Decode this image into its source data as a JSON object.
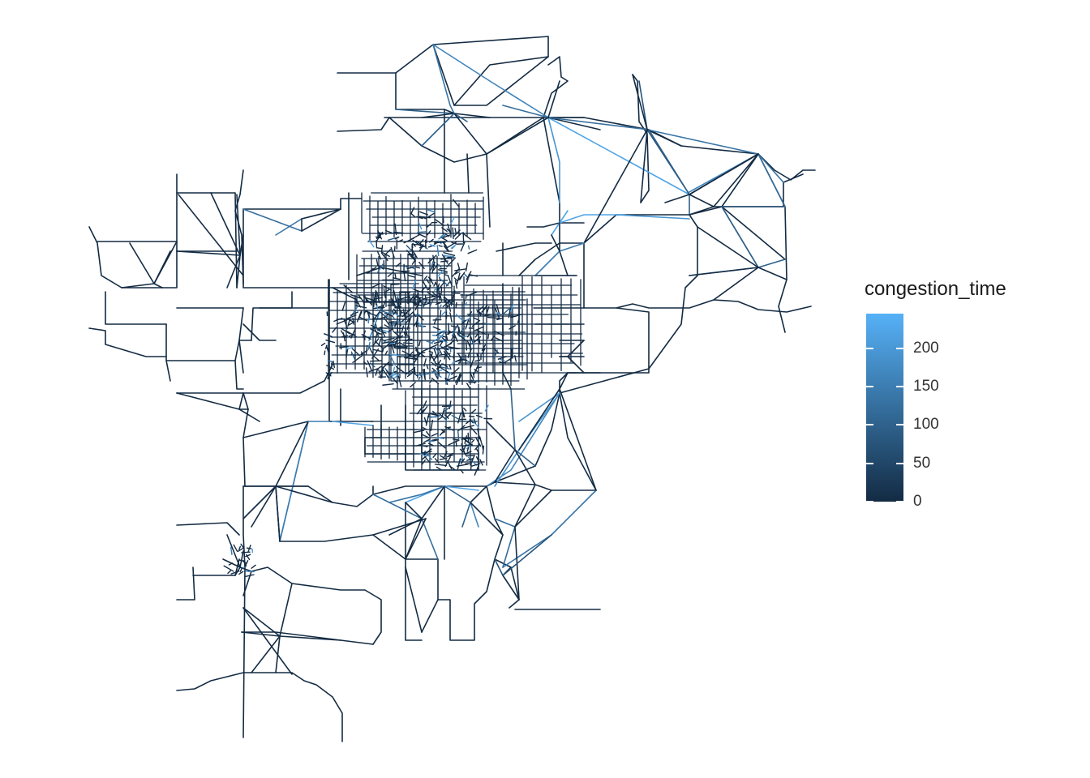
{
  "legend": {
    "title": "congestion_time",
    "color_low": "#132B43",
    "color_high": "#56B1F7",
    "breaks": [
      {
        "value": 0,
        "label": "0"
      },
      {
        "value": 50,
        "label": "50"
      },
      {
        "value": 100,
        "label": "100"
      },
      {
        "value": 150,
        "label": "150"
      },
      {
        "value": 200,
        "label": "200"
      }
    ],
    "range": [
      0,
      245
    ]
  },
  "map": {
    "background": "#ffffff",
    "link_color_default": "#132B43"
  }
}
